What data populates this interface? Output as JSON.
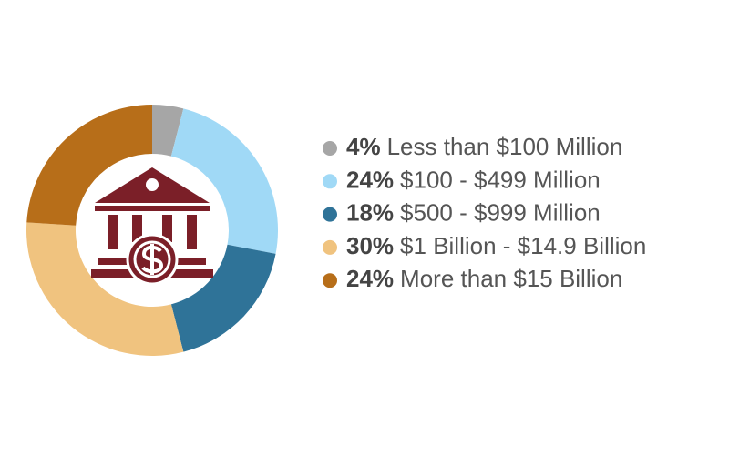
{
  "chart_data": {
    "type": "donut",
    "categories": [
      "Less than $100 Million",
      "$100 - $499 Million",
      "$500 - $999 Million",
      "$1 Billion - $14.9 Billion",
      "More than $15 Billion"
    ],
    "values": [
      4,
      24,
      18,
      30,
      24
    ],
    "value_labels": [
      "4%",
      "24%",
      "18%",
      "30%",
      "24%"
    ],
    "colors": [
      "#a6a6a6",
      "#a0d9f6",
      "#2f7398",
      "#f0c37f",
      "#b76e19"
    ]
  }
}
